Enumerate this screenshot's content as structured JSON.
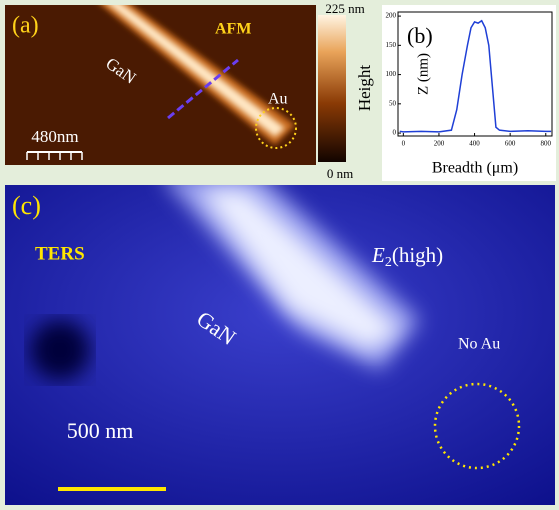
{
  "panel_a": {
    "label": "(a)",
    "mode": "AFM",
    "material": "GaN",
    "marker": "Au",
    "scale": "480nm",
    "colorbar_max": "225 nm",
    "colorbar_min": "0 nm",
    "colorbar_title": "Height"
  },
  "chart_data": {
    "type": "line",
    "label": "(b)",
    "xlabel": "Breadth (μm)",
    "ylabel": "Z (nm)",
    "x": [
      -20,
      0,
      100,
      200,
      270,
      300,
      330,
      360,
      380,
      400,
      420,
      440,
      460,
      480,
      500,
      520,
      540,
      600,
      700,
      800,
      830
    ],
    "series": [
      {
        "color": "#1f3fd6",
        "values": [
          3,
          2,
          3,
          2,
          5,
          40,
          100,
          150,
          180,
          190,
          188,
          192,
          180,
          150,
          80,
          10,
          5,
          3,
          4,
          3,
          3
        ]
      }
    ],
    "xlim": [
      -30,
      835
    ],
    "ylim": [
      -5,
      207
    ],
    "xticks": [
      0,
      200,
      400,
      600,
      800
    ],
    "yticks": [
      0,
      50,
      100,
      150,
      200
    ]
  },
  "panel_c": {
    "label": "(c)",
    "mode": "TERS",
    "material": "GaN",
    "peak_symbol": "E",
    "peak_subscript": "2",
    "peak_suffix": "(high)",
    "marker": "No Au",
    "scale": "500 nm"
  }
}
